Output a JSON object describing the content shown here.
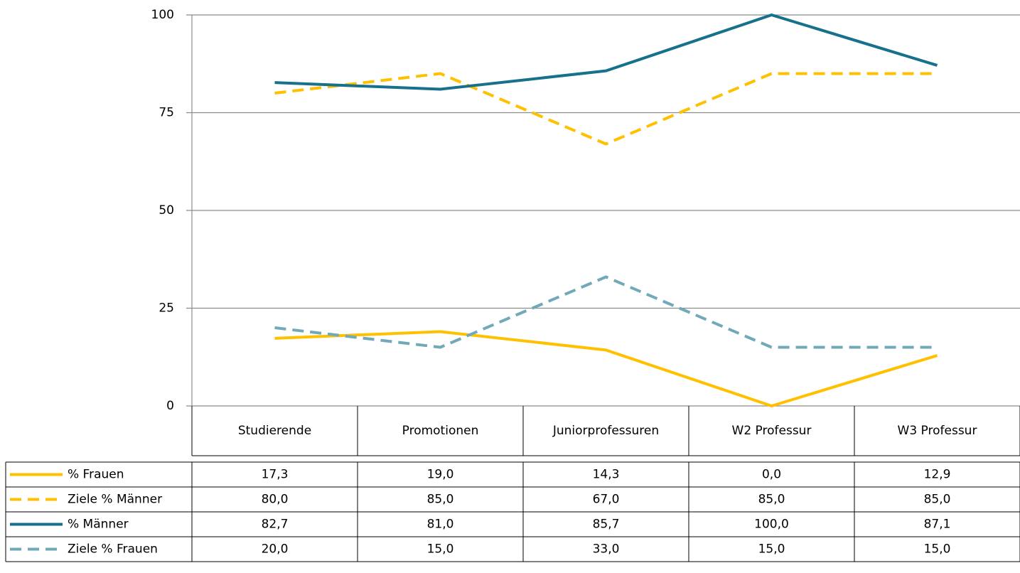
{
  "chart_data": {
    "type": "line",
    "categories": [
      "Studierende",
      "Promotionen",
      "Juniorprofessuren",
      "W2 Professur",
      "W3 Professur"
    ],
    "series": [
      {
        "name": "% Frauen",
        "color": "#ffc000",
        "dashed": false,
        "values": [
          17.3,
          19.0,
          14.3,
          0.0,
          12.9
        ],
        "value_labels": [
          "17,3",
          "19,0",
          "14,3",
          "0,0",
          "12,9"
        ]
      },
      {
        "name": "Ziele % Männer",
        "color": "#ffc000",
        "dashed": true,
        "values": [
          80.0,
          85.0,
          67.0,
          85.0,
          85.0
        ],
        "value_labels": [
          "80,0",
          "85,0",
          "67,0",
          "85,0",
          "85,0"
        ]
      },
      {
        "name": "% Männer",
        "color": "#17708c",
        "dashed": false,
        "values": [
          82.7,
          81.0,
          85.7,
          100.0,
          87.1
        ],
        "value_labels": [
          "82,7",
          "81,0",
          "85,7",
          "100,0",
          "87,1"
        ]
      },
      {
        "name": "Ziele % Frauen",
        "color": "#72a9b9",
        "dashed": true,
        "values": [
          20.0,
          15.0,
          33.0,
          15.0,
          15.0
        ],
        "value_labels": [
          "20,0",
          "15,0",
          "33,0",
          "15,0",
          "15,0"
        ]
      }
    ],
    "ylim": [
      0,
      100
    ],
    "yticks": [
      0,
      25,
      50,
      75,
      100
    ],
    "grid": true
  }
}
